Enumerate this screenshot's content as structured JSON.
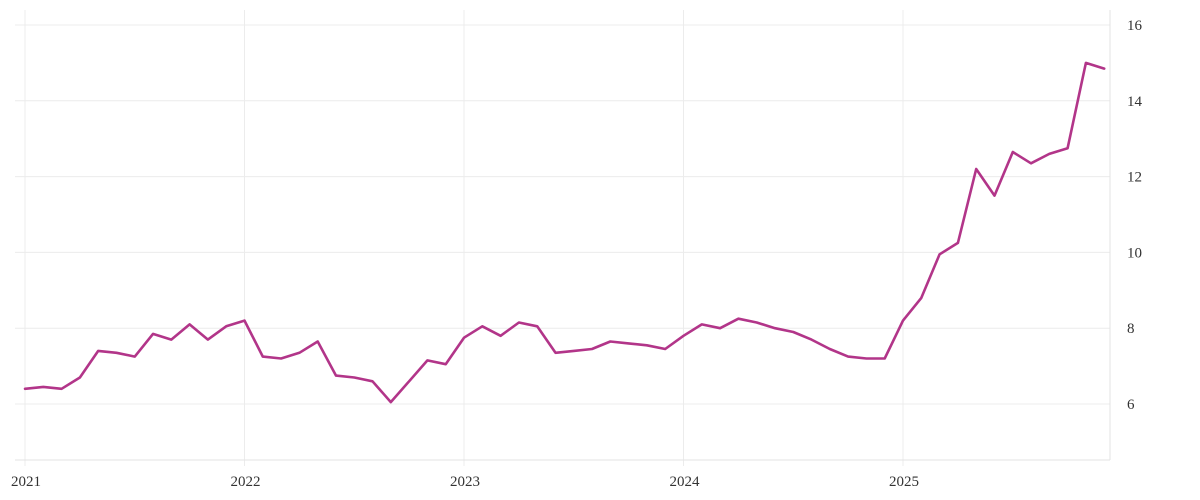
{
  "chart_data": {
    "type": "line",
    "title": "",
    "xlabel": "",
    "ylabel": "",
    "frequency": "monthly",
    "start": "2021-01",
    "end": "2025-12",
    "x_tick_labels": [
      "2021",
      "2022",
      "2023",
      "2024",
      "2025"
    ],
    "y_ticks": [
      6,
      8,
      10,
      12,
      14,
      16
    ],
    "y_axis_side": "right",
    "ylim": [
      4.5,
      16.4
    ],
    "grid": true,
    "legend": false,
    "line_color": "#b23589",
    "grid_color": "#ececec",
    "text_color": "#333333",
    "background_color": "#ffffff",
    "values": [
      6.4,
      6.45,
      6.4,
      6.7,
      7.4,
      7.35,
      7.25,
      7.85,
      7.7,
      8.1,
      7.7,
      8.05,
      8.2,
      7.25,
      7.2,
      7.35,
      7.65,
      6.75,
      6.7,
      6.6,
      6.05,
      6.6,
      7.15,
      7.05,
      7.75,
      8.05,
      7.8,
      8.15,
      8.05,
      7.35,
      7.4,
      7.45,
      7.65,
      7.6,
      7.55,
      7.45,
      7.8,
      8.1,
      8.0,
      8.25,
      8.15,
      8.0,
      7.9,
      7.7,
      7.45,
      7.25,
      7.2,
      7.2,
      8.2,
      8.8,
      9.95,
      10.25,
      12.2,
      11.5,
      12.65,
      12.35,
      12.6,
      12.75,
      15.0,
      14.85
    ]
  }
}
